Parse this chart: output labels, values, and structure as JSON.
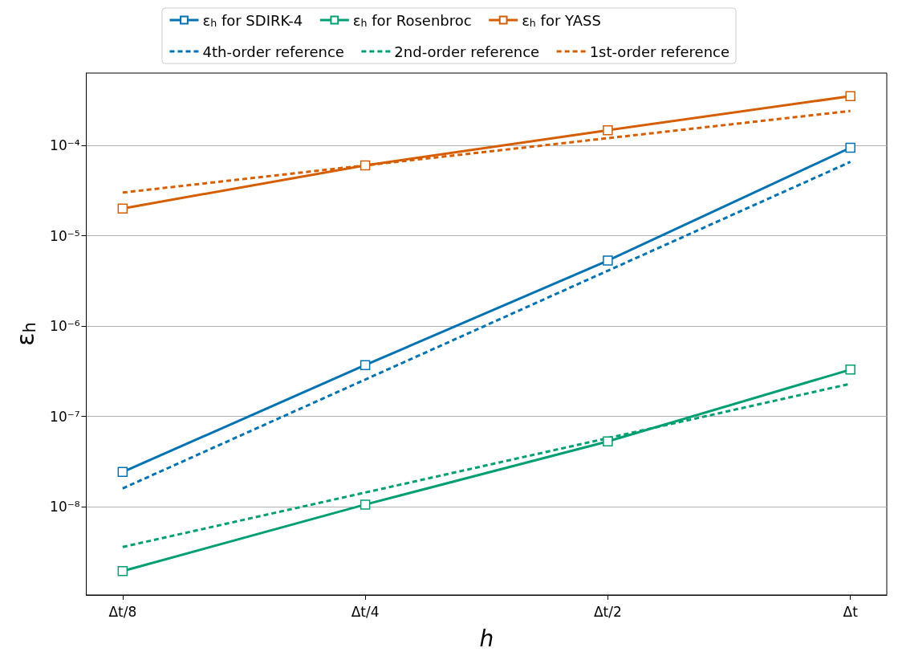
{
  "chart_data": {
    "type": "line",
    "xlabel": "h",
    "ylabel": "ε$_{h}$",
    "categories": [
      "Δt/8",
      "Δt/4",
      "Δt/2",
      "Δt"
    ],
    "log": "y",
    "ylim": [
      1.06e-09,
      0.00063
    ],
    "yticks": [
      {
        "value": 1e-08,
        "label": "10⁻⁸"
      },
      {
        "value": 1e-07,
        "label": "10⁻⁷"
      },
      {
        "value": 1e-06,
        "label": "10⁻⁶"
      },
      {
        "value": 1e-05,
        "label": "10⁻⁵"
      },
      {
        "value": 0.0001,
        "label": "10⁻⁴"
      }
    ],
    "grid": "y",
    "legend": "top",
    "series": [
      {
        "name": "ε$_{h}$ for SDIRK-4",
        "color": "#0072b2",
        "marker": "square",
        "line_style": "solid",
        "values": [
          2.43e-08,
          3.7e-07,
          5.3e-06,
          9.4e-05
        ]
      },
      {
        "name": "ε$_{h}$ for Rosenbroc",
        "color": "#009e73",
        "marker": "square",
        "line_style": "solid",
        "values": [
          1.95e-09,
          1.06e-08,
          5.3e-08,
          3.3e-07
        ]
      },
      {
        "name": "ε$_{h}$ for YASS",
        "color": "#d55e00",
        "marker": "square",
        "line_style": "solid",
        "values": [
          2e-05,
          6e-05,
          0.000147,
          0.00035
        ]
      },
      {
        "name": "4th-order reference",
        "color": "#0072b2",
        "marker": "none",
        "line_style": "dashed",
        "values": [
          1.6e-08,
          2.56e-07,
          4.1e-06,
          6.55e-05
        ]
      },
      {
        "name": "2nd-order reference",
        "color": "#009e73",
        "marker": "none",
        "line_style": "dashed",
        "values": [
          3.6e-09,
          1.44e-08,
          5.76e-08,
          2.3e-07
        ]
      },
      {
        "name": "1st-order reference",
        "color": "#d55e00",
        "marker": "none",
        "line_style": "dashed",
        "values": [
          3e-05,
          6e-05,
          0.00012,
          0.00024
        ]
      }
    ]
  }
}
